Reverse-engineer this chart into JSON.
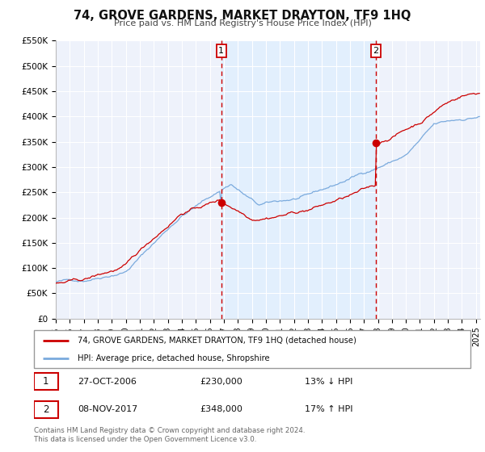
{
  "title": "74, GROVE GARDENS, MARKET DRAYTON, TF9 1HQ",
  "subtitle": "Price paid vs. HM Land Registry's House Price Index (HPI)",
  "hpi_label": "HPI: Average price, detached house, Shropshire",
  "property_label": "74, GROVE GARDENS, MARKET DRAYTON, TF9 1HQ (detached house)",
  "sale1_date": "27-OCT-2006",
  "sale1_price": 230000,
  "sale1_hpi": "13% ↓ HPI",
  "sale1_x": 2006.82,
  "sale2_date": "08-NOV-2017",
  "sale2_price": 348000,
  "sale2_hpi": "17% ↑ HPI",
  "sale2_x": 2017.86,
  "vline1_x": 2006.82,
  "vline2_x": 2017.86,
  "ylim": [
    0,
    550000
  ],
  "xlim_start": 1995.0,
  "xlim_end": 2025.3,
  "yticks": [
    0,
    50000,
    100000,
    150000,
    200000,
    250000,
    300000,
    350000,
    400000,
    450000,
    500000,
    550000
  ],
  "ytick_labels": [
    "£0",
    "£50K",
    "£100K",
    "£150K",
    "£200K",
    "£250K",
    "£300K",
    "£350K",
    "£400K",
    "£450K",
    "£500K",
    "£550K"
  ],
  "xticks": [
    1995,
    1996,
    1997,
    1998,
    1999,
    2000,
    2001,
    2002,
    2003,
    2004,
    2005,
    2006,
    2007,
    2008,
    2009,
    2010,
    2011,
    2012,
    2013,
    2014,
    2015,
    2016,
    2017,
    2018,
    2019,
    2020,
    2021,
    2022,
    2023,
    2024,
    2025
  ],
  "red_color": "#cc0000",
  "blue_color": "#7aaadd",
  "shade_color": "#ddeeff",
  "vline_color": "#cc0000",
  "background_color": "#eef2fb",
  "grid_color": "#ffffff",
  "footer_text": "Contains HM Land Registry data © Crown copyright and database right 2024.\nThis data is licensed under the Open Government Licence v3.0."
}
